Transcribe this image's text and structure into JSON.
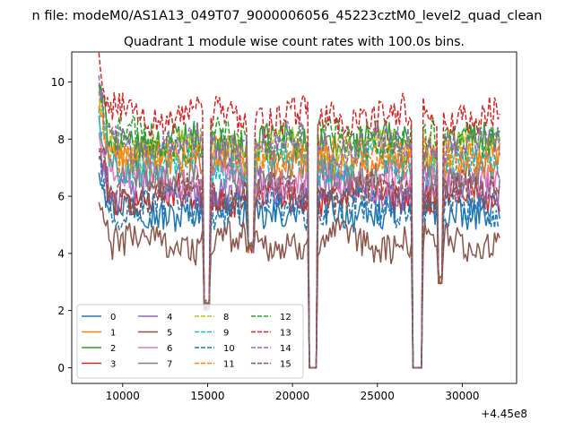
{
  "figure": {
    "suptitle": "n file: modeM0/AS1A13_049T07_9000006056_45223cztM0_level2_quad_clean"
  },
  "chart_data": {
    "type": "line",
    "title": "Quadrant 1 module wise count rates with 100.0s bins.",
    "xlabel": "",
    "ylabel": "",
    "offset_text": "+4.45e8",
    "offset_value": 445000000,
    "xlim": [
      7000,
      33200
    ],
    "ylim": [
      -0.55,
      11.05
    ],
    "x_start": 8600,
    "x_end": 32200,
    "x_step": 100,
    "gaps": [
      [
        21000,
        21450
      ],
      [
        27050,
        27650
      ]
    ],
    "dips": [
      [
        14950,
        2.2
      ],
      [
        17550,
        4.2
      ],
      [
        28700,
        3.1
      ]
    ],
    "x_ticks": [
      10000,
      15000,
      20000,
      25000,
      30000
    ],
    "x_tick_labels": [
      "10000",
      "15000",
      "20000",
      "25000",
      "30000"
    ],
    "y_ticks": [
      0,
      2,
      4,
      6,
      8,
      10
    ],
    "y_tick_labels": [
      "0",
      "2",
      "4",
      "6",
      "8",
      "10"
    ],
    "grid": false,
    "legend_position": "lower-left",
    "series": [
      {
        "name": "0",
        "level": 5.5,
        "color": "#1f77b4",
        "dash": "solid"
      },
      {
        "name": "1",
        "level": 7.3,
        "color": "#ff7f0e",
        "dash": "solid"
      },
      {
        "name": "2",
        "level": 7.9,
        "color": "#2ca02c",
        "dash": "solid"
      },
      {
        "name": "3",
        "level": 6.0,
        "color": "#d62728",
        "dash": "solid"
      },
      {
        "name": "4",
        "level": 6.3,
        "color": "#9467bd",
        "dash": "solid"
      },
      {
        "name": "5",
        "level": 4.4,
        "color": "#8c564b",
        "dash": "solid"
      },
      {
        "name": "6",
        "level": 6.6,
        "color": "#e377c2",
        "dash": "solid"
      },
      {
        "name": "7",
        "level": 6.9,
        "color": "#7f7f7f",
        "dash": "solid"
      },
      {
        "name": "8",
        "level": 7.6,
        "color": "#bcbd22",
        "dash": "dashed"
      },
      {
        "name": "9",
        "level": 7.1,
        "color": "#17becf",
        "dash": "dashed"
      },
      {
        "name": "10",
        "level": 5.6,
        "color": "#1f77b4",
        "dash": "dashed"
      },
      {
        "name": "11",
        "level": 7.4,
        "color": "#ff7f0e",
        "dash": "dashed"
      },
      {
        "name": "12",
        "level": 8.0,
        "color": "#2ca02c",
        "dash": "dashed"
      },
      {
        "name": "13",
        "level": 8.8,
        "color": "#d62728",
        "dash": "dashed"
      },
      {
        "name": "14",
        "level": 7.8,
        "color": "#9467bd",
        "dash": "dashed"
      },
      {
        "name": "15",
        "level": 6.1,
        "color": "#8c564b",
        "dash": "dashed"
      }
    ]
  }
}
